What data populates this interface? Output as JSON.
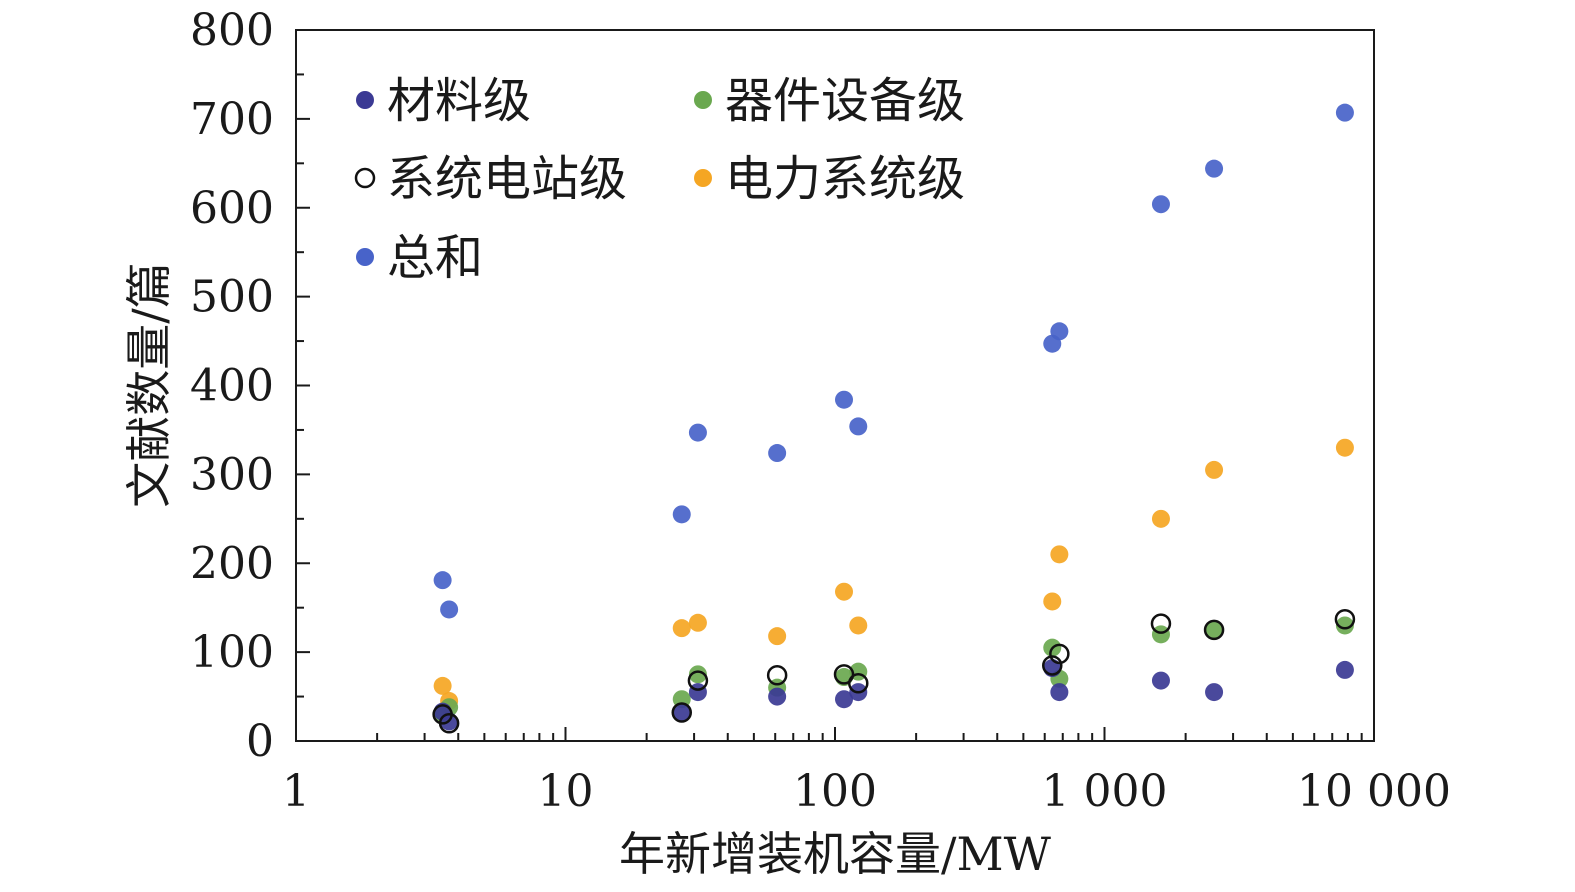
{
  "chart_data": {
    "type": "scatter",
    "xlabel": "年新增装机容量/MW",
    "ylabel": "文献数量/篇",
    "x_scale": "log",
    "xlim": [
      1,
      10000
    ],
    "ylim": [
      0,
      800
    ],
    "x_tick_values": [
      1,
      10,
      100,
      1000,
      10000
    ],
    "x_tick_labels": [
      "1",
      "10",
      "100",
      "1 000",
      "10 000"
    ],
    "y_tick_values": [
      0,
      100,
      200,
      300,
      400,
      500,
      600,
      700,
      800
    ],
    "y_tick_labels": [
      "0",
      "100",
      "200",
      "300",
      "400",
      "500",
      "600",
      "700",
      "800"
    ],
    "grid": false,
    "legend_position": "top-left",
    "x": [
      3.5,
      3.7,
      27,
      31,
      61,
      108,
      122,
      640,
      680,
      1620,
      2550,
      7800
    ],
    "series": [
      {
        "name": "材料级",
        "color": "#3b3a94",
        "marker": "filled",
        "values": [
          33,
          22,
          32,
          55,
          50,
          47,
          55,
          82,
          55,
          68,
          55,
          80
        ]
      },
      {
        "name": "器件设备级",
        "color": "#6aa84f",
        "marker": "filled",
        "values": [
          30,
          38,
          47,
          75,
          60,
          72,
          78,
          105,
          70,
          120,
          125,
          130
        ]
      },
      {
        "name": "系统电站级",
        "color": "#111111",
        "marker": "open",
        "values": [
          30,
          20,
          32,
          68,
          74,
          75,
          65,
          85,
          98,
          132,
          125,
          137
        ]
      },
      {
        "name": "电力系统级",
        "color": "#f5a623",
        "marker": "filled",
        "values": [
          62,
          45,
          127,
          133,
          118,
          168,
          130,
          157,
          210,
          250,
          305,
          330
        ]
      },
      {
        "name": "总和",
        "color": "#4863c9",
        "marker": "filled",
        "values": [
          181,
          148,
          255,
          347,
          324,
          384,
          354,
          447,
          461,
          604,
          644,
          707
        ]
      }
    ]
  }
}
